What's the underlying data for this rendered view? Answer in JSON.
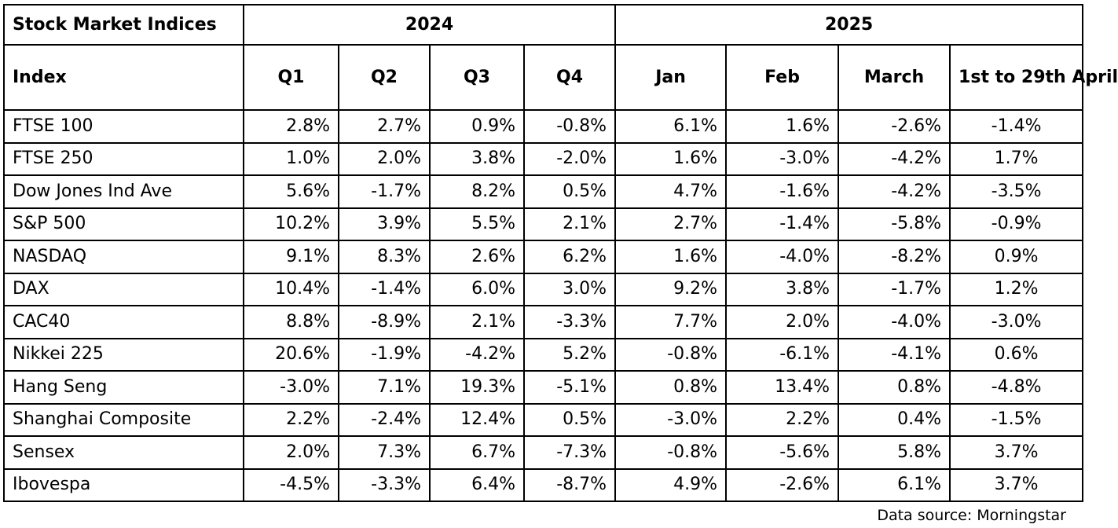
{
  "table": {
    "corner_label": "Stock Market Indices",
    "group_2024": "2024",
    "group_2025": "2025",
    "columns": [
      "Index",
      "Q1",
      "Q2",
      "Q3",
      "Q4",
      "Jan",
      "Feb",
      "March",
      "1st to 29th April"
    ],
    "rows": [
      {
        "name": "FTSE 100",
        "values": [
          "2.8%",
          "2.7%",
          "0.9%",
          "-0.8%",
          "6.1%",
          "1.6%",
          "-2.6%",
          "-1.4%"
        ]
      },
      {
        "name": "FTSE 250",
        "values": [
          "1.0%",
          "2.0%",
          "3.8%",
          "-2.0%",
          "1.6%",
          "-3.0%",
          "-4.2%",
          "1.7%"
        ]
      },
      {
        "name": "Dow Jones Ind Ave",
        "values": [
          "5.6%",
          "-1.7%",
          "8.2%",
          "0.5%",
          "4.7%",
          "-1.6%",
          "-4.2%",
          "-3.5%"
        ]
      },
      {
        "name": "S&P 500",
        "values": [
          "10.2%",
          "3.9%",
          "5.5%",
          "2.1%",
          "2.7%",
          "-1.4%",
          "-5.8%",
          "-0.9%"
        ]
      },
      {
        "name": "NASDAQ",
        "values": [
          "9.1%",
          "8.3%",
          "2.6%",
          "6.2%",
          "1.6%",
          "-4.0%",
          "-8.2%",
          "0.9%"
        ]
      },
      {
        "name": "DAX",
        "values": [
          "10.4%",
          "-1.4%",
          "6.0%",
          "3.0%",
          "9.2%",
          "3.8%",
          "-1.7%",
          "1.2%"
        ]
      },
      {
        "name": "CAC40",
        "values": [
          "8.8%",
          "-8.9%",
          "2.1%",
          "-3.3%",
          "7.7%",
          "2.0%",
          "-4.0%",
          "-3.0%"
        ]
      },
      {
        "name": "Nikkei 225",
        "values": [
          "20.6%",
          "-1.9%",
          "-4.2%",
          "5.2%",
          "-0.8%",
          "-6.1%",
          "-4.1%",
          "0.6%"
        ]
      },
      {
        "name": "Hang Seng",
        "values": [
          "-3.0%",
          "7.1%",
          "19.3%",
          "-5.1%",
          "0.8%",
          "13.4%",
          "0.8%",
          "-4.8%"
        ]
      },
      {
        "name": "Shanghai Composite",
        "values": [
          "2.2%",
          "-2.4%",
          "12.4%",
          "0.5%",
          "-3.0%",
          "2.2%",
          "0.4%",
          "-1.5%"
        ]
      },
      {
        "name": "Sensex",
        "values": [
          "2.0%",
          "7.3%",
          "6.7%",
          "-7.3%",
          "-0.8%",
          "-5.6%",
          "5.8%",
          "3.7%"
        ]
      },
      {
        "name": "Ibovespa",
        "values": [
          "-4.5%",
          "-3.3%",
          "6.4%",
          "-8.7%",
          "4.9%",
          "-2.6%",
          "6.1%",
          "3.7%"
        ]
      }
    ]
  },
  "source_note": "Data source: Morningstar"
}
